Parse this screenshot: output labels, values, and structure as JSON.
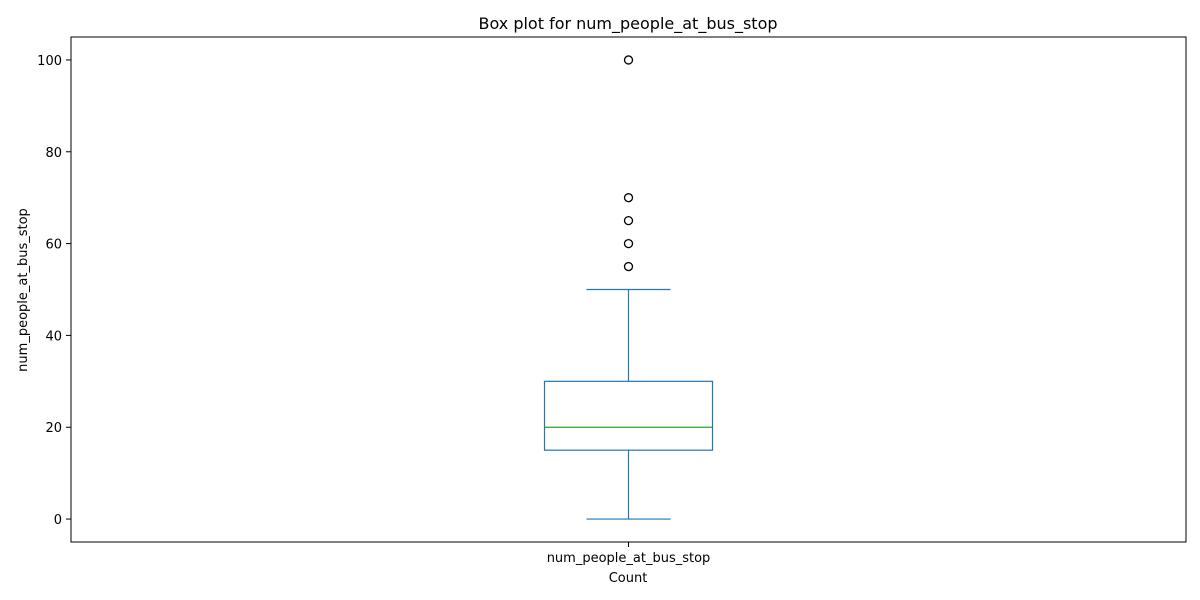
{
  "chart_data": {
    "type": "box",
    "title": "Box plot for num_people_at_bus_stop",
    "xlabel": "Count",
    "ylabel": "num_people_at_bus_stop",
    "categories": [
      "num_people_at_bus_stop"
    ],
    "ylim": [
      -5,
      105
    ],
    "y_ticks": [
      0,
      20,
      40,
      60,
      80,
      100
    ],
    "grid": false,
    "boxes": [
      {
        "category": "num_people_at_bus_stop",
        "whisker_low": 0,
        "q1": 15,
        "median": 20,
        "q3": 30,
        "whisker_high": 50,
        "outliers": [
          55,
          60,
          65,
          70,
          100
        ]
      }
    ],
    "colors": {
      "box": "#1f77b4",
      "median": "#2ca02c",
      "outlier_edge": "#000000"
    }
  }
}
